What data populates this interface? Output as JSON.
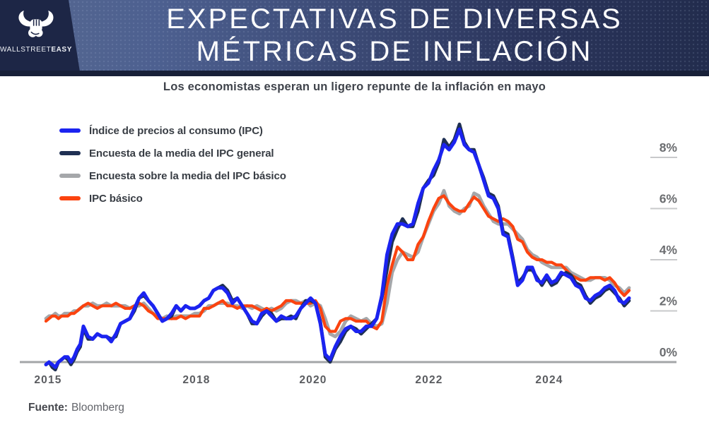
{
  "header": {
    "brand_light": "WALLSTREET",
    "brand_bold": "EASY",
    "title_line1": "EXPECTATIVAS DE DIVERSAS",
    "title_line2": "MÉTRICAS DE INFLACIÓN"
  },
  "subtitle": "Los economistas esperan un ligero repunte de la inflación en mayo",
  "footer": {
    "source_label": "Fuente:",
    "source_value": "Bloomberg"
  },
  "colors": {
    "brand_dark": "#1d2646",
    "header_gradient_start": "#566890",
    "header_gradient_end": "#222c4d",
    "axis": "#a3a5a8",
    "tick": "#c8c9cb"
  },
  "chart_data": {
    "type": "line",
    "title": "EXPECTATIVAS DE DIVERSAS MÉTRICAS DE INFLACIÓN",
    "subtitle": "Los economistas esperan un ligero repunte de la inflación en mayo",
    "x_unit": "month",
    "x_start": "2015-01",
    "x_end": "2025-05",
    "x_tick_labels": [
      "2015",
      "2018",
      "2020",
      "2022",
      "2024"
    ],
    "x_tick_month_index": [
      0,
      36,
      60,
      84,
      108
    ],
    "y_tick_labels": [
      "0%",
      "2%",
      "4%",
      "6%",
      "8%"
    ],
    "y_tick_values": [
      0,
      2,
      4,
      6,
      8
    ],
    "ylim": [
      -0.5,
      9.6
    ],
    "grid": "off",
    "legend_position": "top-left",
    "source": "Bloomberg",
    "series": [
      {
        "name": "Índice de precios al consumo (IPC)",
        "color": "#1b23f0",
        "values": [
          -0.1,
          0.0,
          -0.1,
          -0.2,
          0.0,
          0.1,
          0.2,
          0.2,
          0.0,
          0.2,
          0.5,
          0.7,
          1.4,
          1.0,
          0.9,
          1.1,
          1.0,
          1.0,
          0.8,
          1.1,
          1.5,
          1.6,
          1.7,
          2.1,
          2.5,
          2.7,
          2.4,
          2.2,
          1.9,
          1.6,
          1.7,
          1.9,
          2.2,
          2.0,
          2.2,
          2.1,
          2.1,
          2.2,
          2.4,
          2.5,
          2.8,
          2.9,
          2.9,
          2.7,
          2.3,
          2.5,
          2.2,
          1.9,
          1.6,
          1.5,
          1.9,
          2.0,
          1.8,
          1.6,
          1.8,
          1.7,
          1.7,
          1.8,
          2.1,
          2.3,
          2.5,
          2.3,
          1.5,
          0.3,
          0.1,
          0.6,
          1.0,
          1.3,
          1.4,
          1.2,
          1.2,
          1.4,
          1.4,
          1.7,
          2.6,
          4.2,
          5.0,
          5.4,
          5.4,
          5.3,
          5.4,
          6.2,
          6.8,
          7.0,
          7.5,
          7.9,
          8.5,
          8.3,
          8.6,
          9.1,
          8.5,
          8.3,
          8.2,
          7.7,
          7.1,
          6.5,
          6.4,
          6.0,
          5.0,
          4.9,
          4.0,
          3.0,
          3.2,
          3.7,
          3.7,
          3.2,
          3.1,
          3.4,
          3.1,
          3.2,
          3.5,
          3.4,
          3.3,
          3.0,
          2.9,
          2.5,
          2.4,
          2.6,
          2.7,
          2.9,
          3.0,
          2.8,
          2.4,
          2.3,
          2.5
        ]
      },
      {
        "name": "Encuesta de la media del IPC general",
        "color": "#1f3053",
        "values": [
          -0.1,
          0.0,
          -0.2,
          -0.3,
          0.0,
          0.1,
          0.2,
          0.1,
          -0.1,
          0.1,
          0.4,
          0.6,
          1.3,
          0.9,
          0.9,
          1.1,
          1.0,
          1.0,
          0.9,
          1.0,
          1.5,
          1.6,
          1.7,
          2.0,
          2.5,
          2.6,
          2.4,
          2.2,
          1.9,
          1.6,
          1.7,
          1.8,
          2.2,
          2.0,
          2.2,
          2.1,
          2.1,
          2.2,
          2.4,
          2.5,
          2.8,
          2.9,
          3.0,
          2.8,
          2.4,
          2.5,
          2.2,
          1.9,
          1.5,
          1.5,
          1.8,
          2.0,
          1.9,
          1.6,
          1.7,
          1.7,
          1.8,
          1.7,
          2.1,
          2.4,
          2.4,
          2.3,
          1.6,
          0.2,
          0.0,
          0.5,
          0.8,
          1.2,
          1.4,
          1.3,
          1.1,
          1.3,
          1.5,
          1.7,
          2.5,
          3.6,
          4.7,
          5.2,
          5.6,
          5.3,
          5.3,
          5.9,
          6.8,
          7.1,
          7.3,
          7.8,
          8.7,
          8.4,
          8.7,
          9.3,
          8.6,
          8.3,
          8.3,
          7.7,
          7.2,
          6.6,
          6.5,
          6.1,
          5.1,
          5.0,
          4.1,
          3.1,
          3.3,
          3.6,
          3.6,
          3.3,
          3.0,
          3.3,
          3.0,
          3.1,
          3.4,
          3.5,
          3.4,
          3.1,
          3.0,
          2.6,
          2.3,
          2.5,
          2.6,
          2.8,
          2.9,
          2.7,
          2.5,
          2.2,
          2.4
        ]
      },
      {
        "name": "Encuesta sobre la media del IPC básico",
        "color": "#a5a7aa",
        "values": [
          1.7,
          1.8,
          1.8,
          1.9,
          1.8,
          1.8,
          1.9,
          1.9,
          1.9,
          2.0,
          2.0,
          2.1,
          2.2,
          2.2,
          2.3,
          2.2,
          2.2,
          2.3,
          2.2,
          2.2,
          2.2,
          2.2,
          2.1,
          2.2,
          2.2,
          2.3,
          2.1,
          1.9,
          1.8,
          1.7,
          1.8,
          1.7,
          1.8,
          1.8,
          1.8,
          1.8,
          1.9,
          1.9,
          2.0,
          2.2,
          2.2,
          2.3,
          2.3,
          2.3,
          2.2,
          2.2,
          2.1,
          2.2,
          2.1,
          2.2,
          2.1,
          2.0,
          2.1,
          2.0,
          2.1,
          2.3,
          2.4,
          2.4,
          2.3,
          2.4,
          2.2,
          2.3,
          2.2,
          1.7,
          1.1,
          1.0,
          1.2,
          1.6,
          1.8,
          1.7,
          1.6,
          1.7,
          1.5,
          1.4,
          1.5,
          2.3,
          3.5,
          4.0,
          4.3,
          4.2,
          4.1,
          4.3,
          4.9,
          5.4,
          5.9,
          6.2,
          6.7,
          6.1,
          5.9,
          5.8,
          6.0,
          6.1,
          6.6,
          6.5,
          6.1,
          5.8,
          5.5,
          5.4,
          5.4,
          5.4,
          5.2,
          5.0,
          4.8,
          4.4,
          4.2,
          4.1,
          3.9,
          3.8,
          3.7,
          3.7,
          3.7,
          3.7,
          3.5,
          3.4,
          3.3,
          3.2,
          3.2,
          3.3,
          3.3,
          3.3,
          3.2,
          3.0,
          2.9,
          2.7,
          2.9
        ]
      },
      {
        "name": "IPC básico",
        "color": "#fb430f",
        "values": [
          1.6,
          1.7,
          1.8,
          1.8,
          1.7,
          1.8,
          1.8,
          1.8,
          1.9,
          1.9,
          2.0,
          2.1,
          2.2,
          2.3,
          2.2,
          2.1,
          2.2,
          2.2,
          2.2,
          2.3,
          2.2,
          2.1,
          2.1,
          2.2,
          2.3,
          2.2,
          2.0,
          1.9,
          1.7,
          1.7,
          1.7,
          1.7,
          1.7,
          1.8,
          1.7,
          1.8,
          1.8,
          1.8,
          2.1,
          2.1,
          2.2,
          2.3,
          2.4,
          2.2,
          2.2,
          2.1,
          2.2,
          2.2,
          2.2,
          2.1,
          2.0,
          2.1,
          2.0,
          2.1,
          2.2,
          2.4,
          2.4,
          2.3,
          2.3,
          2.3,
          2.3,
          2.4,
          2.1,
          1.4,
          1.2,
          1.2,
          1.6,
          1.7,
          1.7,
          1.6,
          1.6,
          1.6,
          1.4,
          1.3,
          1.6,
          3.0,
          3.8,
          4.5,
          4.3,
          4.0,
          4.0,
          4.6,
          4.9,
          5.5,
          6.0,
          6.4,
          6.5,
          6.2,
          6.0,
          5.9,
          5.9,
          6.2,
          6.45,
          6.3,
          6.0,
          5.7,
          5.6,
          5.5,
          5.6,
          5.5,
          5.3,
          4.8,
          4.7,
          4.3,
          4.1,
          4.0,
          4.0,
          3.9,
          3.9,
          3.8,
          3.8,
          3.6,
          3.4,
          3.3,
          3.2,
          3.2,
          3.3,
          3.3,
          3.3,
          3.2,
          3.3,
          3.1,
          2.8,
          2.6,
          2.8
        ]
      }
    ]
  }
}
